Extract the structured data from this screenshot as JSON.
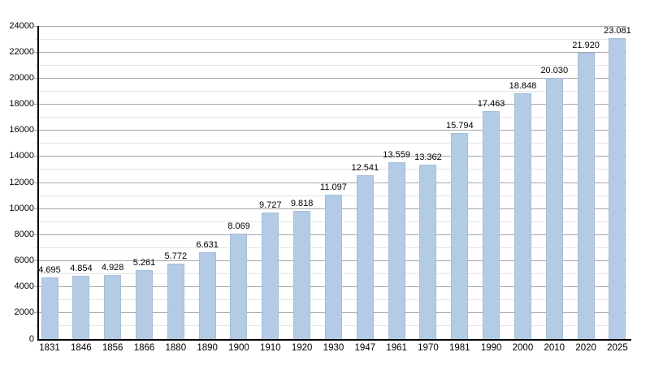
{
  "chart_data": {
    "type": "bar",
    "categories": [
      "1831",
      "1846",
      "1856",
      "1866",
      "1880",
      "1890",
      "1900",
      "1910",
      "1920",
      "1930",
      "1947",
      "1961",
      "1970",
      "1981",
      "1990",
      "2000",
      "2010",
      "2020",
      "2025"
    ],
    "values": [
      4695,
      4854,
      4928,
      5261,
      5772,
      6631,
      8069,
      9727,
      9818,
      11097,
      12541,
      13559,
      13362,
      15794,
      17463,
      18848,
      20030,
      21920,
      23081
    ],
    "value_labels": [
      "4.695",
      "4.854",
      "4.928",
      "5.261",
      "5.772",
      "6.631",
      "8.069",
      "9.727",
      "9.818",
      "11.097",
      "12.541",
      "13.559",
      "13.362",
      "15.794",
      "17.463",
      "18.848",
      "20.030",
      "21.920",
      "23.081"
    ],
    "title": "",
    "xlabel": "",
    "ylabel": "",
    "ylim": [
      0,
      24000
    ],
    "y_major_step": 2000,
    "y_minor_step": 1000,
    "y_tick_labels": [
      "0",
      "2000",
      "4000",
      "6000",
      "8000",
      "10000",
      "12000",
      "14000",
      "16000",
      "18000",
      "20000",
      "22000",
      "24000"
    ],
    "grid": true,
    "legend_position": "none",
    "colors": {
      "bar_fill": "#b4cbe6",
      "bar_edge": "#a4bedb",
      "grid_major": "#a6a6a6",
      "grid_minor": "#e5e5e5",
      "tick_minor": "#c9c9c9",
      "axis": "#000000",
      "text": "#000000",
      "background": "#ffffff"
    }
  }
}
